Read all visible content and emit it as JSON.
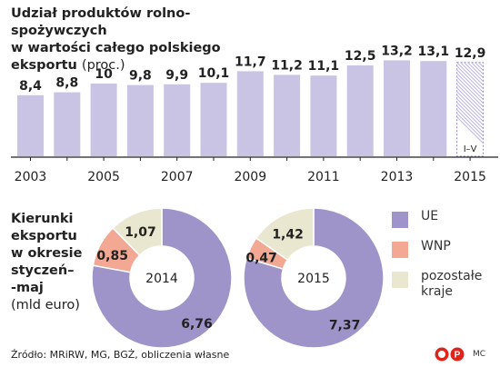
{
  "title": {
    "line1": "Udział produktów rolno-spożywczych",
    "line2": "w wartości całego polskiego",
    "line3": "eksportu",
    "unit": "(proc.)"
  },
  "colors": {
    "bar": "#c9c4e3",
    "bar_last": "#c9c4e3",
    "UE": "#9f94c9",
    "WNP": "#f2a893",
    "pozostale": "#e9e7cf"
  },
  "chart_data": [
    {
      "type": "bar",
      "categories": [
        "2003",
        "2004",
        "2005",
        "2006",
        "2007",
        "2008",
        "2009",
        "2010",
        "2011",
        "2012",
        "2013",
        "2014",
        "2015"
      ],
      "values": [
        8.4,
        8.8,
        10,
        9.8,
        9.9,
        10.1,
        11.7,
        11.2,
        11.1,
        12.5,
        13.2,
        13.1,
        12.9
      ],
      "value_labels": [
        "8,4",
        "8,8",
        "10",
        "9,8",
        "9,9",
        "10,1",
        "11,7",
        "11,2",
        "11,1",
        "12,5",
        "13,2",
        "13,1",
        "12,9"
      ],
      "x_tick_labels": [
        "2003",
        "2005",
        "2007",
        "2009",
        "2011",
        "2013",
        "2015"
      ],
      "annotation": "I–V",
      "annotation_category": "2015",
      "ylim": [
        0,
        15
      ]
    },
    {
      "type": "pie",
      "center_label": "2014",
      "slices": [
        {
          "name": "UE",
          "value": 6.76,
          "label": "6,76"
        },
        {
          "name": "WNP",
          "value": 0.85,
          "label": "0,85"
        },
        {
          "name": "pozostałe kraje",
          "value": 1.07,
          "label": "1,07"
        }
      ]
    },
    {
      "type": "pie",
      "center_label": "2015",
      "slices": [
        {
          "name": "UE",
          "value": 7.37,
          "label": "7,37"
        },
        {
          "name": "WNP",
          "value": 0.47,
          "label": "0,47"
        },
        {
          "name": "pozostałe kraje",
          "value": 1.42,
          "label": "1,42"
        }
      ]
    }
  ],
  "section2": {
    "line1": "Kierunki",
    "line2": "eksportu",
    "line3": "w okresie",
    "line4": "styczeń–",
    "line5": "-maj",
    "unit": "(mld euro)"
  },
  "legend": [
    {
      "label": "UE",
      "color_key": "UE"
    },
    {
      "label": "WNP",
      "color_key": "WNP"
    },
    {
      "label": "pozostałe kraje",
      "color_key": "pozostale"
    }
  ],
  "footer": "Źródło: MRiRW, MG, BGŻ, obliczenia własne",
  "logo_text": "PAP",
  "author": "MC"
}
